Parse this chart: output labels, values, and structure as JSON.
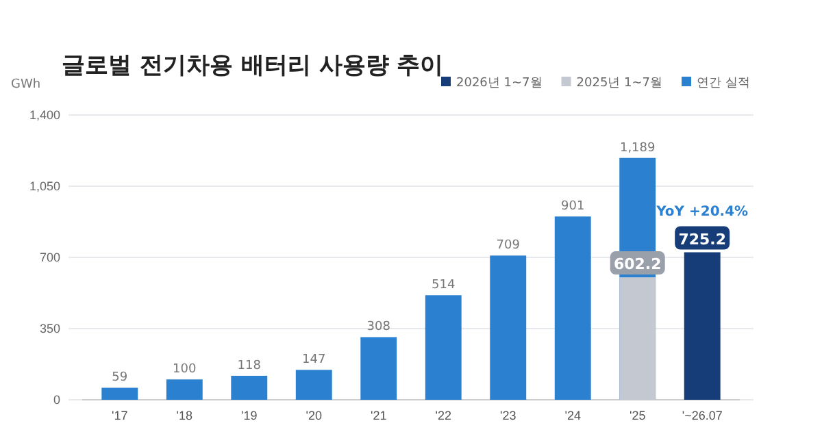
{
  "chart_data": {
    "type": "bar",
    "title": "글로벌 전기차용 배터리 사용량 추이",
    "ylabel": "GWh",
    "categories": [
      "'17",
      "'18",
      "'19",
      "'20",
      "'21",
      "'22",
      "'23",
      "'24",
      "'25",
      "'~26.07"
    ],
    "series": [
      {
        "name": "연간 실적",
        "color": "#2b80d0",
        "values": [
          59,
          100,
          118,
          147,
          308,
          514,
          709,
          901,
          1189,
          null
        ],
        "value_labels": [
          "59",
          "100",
          "118",
          "147",
          "308",
          "514",
          "709",
          "901",
          "1,189",
          null
        ]
      },
      {
        "name": "2025년 1~7월",
        "color": "#c4c8d0",
        "values": [
          null,
          null,
          null,
          null,
          null,
          null,
          null,
          null,
          602.2,
          null
        ],
        "value_labels": [
          null,
          null,
          null,
          null,
          null,
          null,
          null,
          null,
          "602.2",
          null
        ]
      },
      {
        "name": "2026년 1~7월",
        "color": "#173d78",
        "values": [
          null,
          null,
          null,
          null,
          null,
          null,
          null,
          null,
          null,
          725.2
        ],
        "value_labels": [
          null,
          null,
          null,
          null,
          null,
          null,
          null,
          null,
          null,
          "725.2"
        ]
      }
    ],
    "ylim": [
      0,
      1400
    ],
    "yticks": [
      0,
      350,
      700,
      {
        "value": 1050,
        "label": "1,050"
      },
      {
        "value": 1400,
        "label": "1,400"
      }
    ],
    "grid": "y",
    "legend": "top right",
    "annotations": [
      {
        "text": "YoY +20.4%",
        "x": "'~26.07",
        "y": 725.2
      }
    ]
  }
}
